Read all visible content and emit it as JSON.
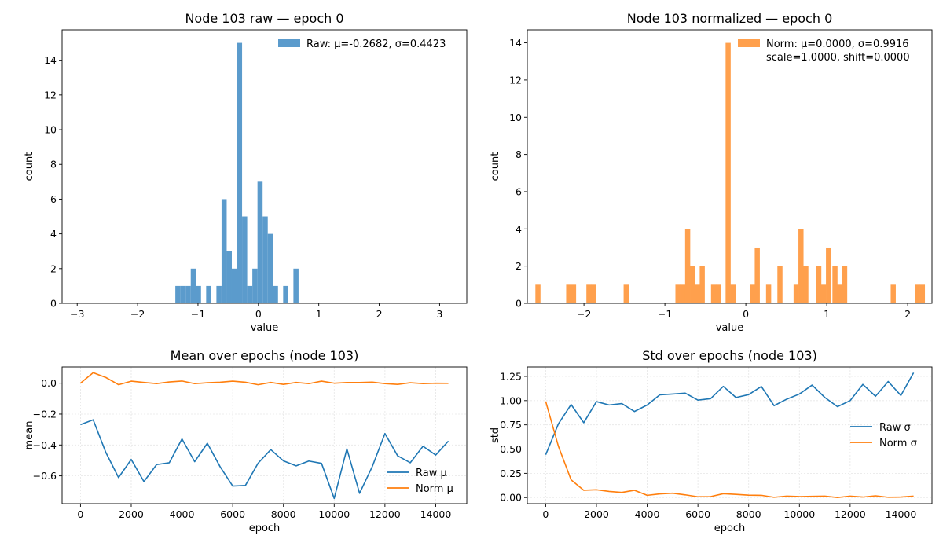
{
  "chart_data": [
    {
      "type": "bar",
      "subtype": "histogram",
      "title": "Node 103 raw — epoch 0",
      "xlabel": "value",
      "ylabel": "count",
      "xlim": [
        -3.25,
        3.45
      ],
      "ylim": [
        0,
        15.75
      ],
      "xticks": [
        -3,
        -2,
        -1,
        0,
        1,
        2,
        3
      ],
      "yticks": [
        0,
        2,
        4,
        6,
        8,
        10,
        12,
        14
      ],
      "bin_width": 0.085,
      "color": "#5b9bcc",
      "legend": {
        "label": "Raw: μ=-0.2682, σ=0.4423",
        "loc": "upper right"
      },
      "bins": [
        {
          "x": -1.375,
          "count": 1
        },
        {
          "x": -1.29,
          "count": 1
        },
        {
          "x": -1.205,
          "count": 1
        },
        {
          "x": -1.12,
          "count": 2
        },
        {
          "x": -1.035,
          "count": 1
        },
        {
          "x": -0.865,
          "count": 1
        },
        {
          "x": -0.695,
          "count": 1
        },
        {
          "x": -0.61,
          "count": 6
        },
        {
          "x": -0.525,
          "count": 3
        },
        {
          "x": -0.44,
          "count": 2
        },
        {
          "x": -0.355,
          "count": 15
        },
        {
          "x": -0.27,
          "count": 5
        },
        {
          "x": -0.185,
          "count": 1
        },
        {
          "x": -0.1,
          "count": 2
        },
        {
          "x": -0.015,
          "count": 7
        },
        {
          "x": 0.07,
          "count": 5
        },
        {
          "x": 0.155,
          "count": 4
        },
        {
          "x": 0.24,
          "count": 1
        },
        {
          "x": 0.41,
          "count": 1
        },
        {
          "x": 0.58,
          "count": 2
        }
      ]
    },
    {
      "type": "bar",
      "subtype": "histogram",
      "title": "Node 103 normalized — epoch 0",
      "xlabel": "value",
      "ylabel": "count",
      "xlim": [
        -2.7,
        2.3
      ],
      "ylim": [
        0,
        14.7
      ],
      "xticks": [
        -2,
        -1,
        0,
        1,
        2
      ],
      "yticks": [
        0,
        2,
        4,
        6,
        8,
        10,
        12,
        14
      ],
      "bin_width": 0.063,
      "color": "#ffa04d",
      "legend": {
        "label": "Norm: μ=0.0000, σ=0.9916",
        "label2": "scale=1.0000, shift=0.0000",
        "loc": "upper right"
      },
      "bins": [
        {
          "x": -2.6,
          "count": 1
        },
        {
          "x": -2.22,
          "count": 1
        },
        {
          "x": -2.16,
          "count": 1
        },
        {
          "x": -1.97,
          "count": 1
        },
        {
          "x": -1.91,
          "count": 1
        },
        {
          "x": -1.51,
          "count": 1
        },
        {
          "x": -0.87,
          "count": 1
        },
        {
          "x": -0.81,
          "count": 1
        },
        {
          "x": -0.75,
          "count": 4
        },
        {
          "x": -0.69,
          "count": 2
        },
        {
          "x": -0.63,
          "count": 1
        },
        {
          "x": -0.57,
          "count": 2
        },
        {
          "x": -0.43,
          "count": 1
        },
        {
          "x": -0.37,
          "count": 1
        },
        {
          "x": -0.25,
          "count": 14
        },
        {
          "x": -0.19,
          "count": 1
        },
        {
          "x": 0.05,
          "count": 1
        },
        {
          "x": 0.11,
          "count": 3
        },
        {
          "x": 0.25,
          "count": 1
        },
        {
          "x": 0.39,
          "count": 2
        },
        {
          "x": 0.59,
          "count": 1
        },
        {
          "x": 0.65,
          "count": 4
        },
        {
          "x": 0.71,
          "count": 2
        },
        {
          "x": 0.87,
          "count": 2
        },
        {
          "x": 0.93,
          "count": 1
        },
        {
          "x": 0.99,
          "count": 3
        },
        {
          "x": 1.07,
          "count": 2
        },
        {
          "x": 1.13,
          "count": 1
        },
        {
          "x": 1.19,
          "count": 2
        },
        {
          "x": 1.79,
          "count": 1
        },
        {
          "x": 2.09,
          "count": 1
        },
        {
          "x": 2.15,
          "count": 1
        }
      ]
    },
    {
      "type": "line",
      "title": "Mean over epochs (node 103)",
      "xlabel": "epoch",
      "ylabel": "mean",
      "xlim": [
        -725,
        15225
      ],
      "ylim": [
        -0.78,
        0.105
      ],
      "xticks": [
        0,
        2000,
        4000,
        6000,
        8000,
        10000,
        12000,
        14000
      ],
      "yticks": [
        -0.6,
        -0.4,
        -0.2,
        0.0
      ],
      "ytick_labels": [
        "−0.6",
        "−0.4",
        "−0.2",
        "0.0"
      ],
      "grid": true,
      "legend_loc": "lower right",
      "x": [
        0,
        500,
        1000,
        1500,
        2000,
        2500,
        3000,
        3500,
        4000,
        4500,
        5000,
        5500,
        6000,
        6500,
        7000,
        7500,
        8000,
        8500,
        9000,
        9500,
        10000,
        10500,
        11000,
        11500,
        12000,
        12500,
        13000,
        13500,
        14000,
        14500
      ],
      "series": [
        {
          "name": "Raw μ",
          "color": "#1f77b4",
          "values": [
            -0.268,
            -0.237,
            -0.449,
            -0.611,
            -0.494,
            -0.637,
            -0.527,
            -0.515,
            -0.361,
            -0.508,
            -0.389,
            -0.54,
            -0.666,
            -0.662,
            -0.518,
            -0.43,
            -0.503,
            -0.535,
            -0.504,
            -0.519,
            -0.746,
            -0.425,
            -0.713,
            -0.54,
            -0.326,
            -0.47,
            -0.515,
            -0.408,
            -0.465,
            -0.375
          ]
        },
        {
          "name": "Norm μ",
          "color": "#ff7f0e",
          "values": [
            0.0,
            0.068,
            0.037,
            -0.01,
            0.013,
            0.005,
            -0.003,
            0.008,
            0.014,
            -0.003,
            0.003,
            0.006,
            0.013,
            0.006,
            -0.01,
            0.005,
            -0.008,
            0.005,
            -0.003,
            0.013,
            0.0,
            0.004,
            0.004,
            0.007,
            -0.003,
            -0.008,
            0.003,
            -0.003,
            0.0,
            -0.001
          ]
        }
      ]
    },
    {
      "type": "line",
      "title": "Std over epochs (node 103)",
      "xlabel": "epoch",
      "ylabel": "std",
      "xlim": [
        -725,
        15225
      ],
      "ylim": [
        -0.063,
        1.347
      ],
      "xticks": [
        0,
        2000,
        4000,
        6000,
        8000,
        10000,
        12000,
        14000
      ],
      "yticks": [
        0.0,
        0.25,
        0.5,
        0.75,
        1.0,
        1.25
      ],
      "ytick_labels": [
        "0.00",
        "0.25",
        "0.50",
        "0.75",
        "1.00",
        "1.25"
      ],
      "grid": true,
      "legend_loc": "center right",
      "x": [
        0,
        500,
        1000,
        1500,
        2000,
        2500,
        3000,
        3500,
        4000,
        4500,
        5000,
        5500,
        6000,
        6500,
        7000,
        7500,
        8000,
        8500,
        9000,
        9500,
        10000,
        10500,
        11000,
        11500,
        12000,
        12500,
        13000,
        13500,
        14000,
        14500
      ],
      "series": [
        {
          "name": "Raw σ",
          "color": "#1f77b4",
          "values": [
            0.442,
            0.76,
            0.96,
            0.772,
            0.99,
            0.955,
            0.97,
            0.888,
            0.955,
            1.06,
            1.068,
            1.077,
            1.005,
            1.02,
            1.147,
            1.032,
            1.062,
            1.146,
            0.948,
            1.015,
            1.068,
            1.16,
            1.033,
            0.938,
            1.0,
            1.167,
            1.045,
            1.197,
            1.053,
            1.287
          ]
        },
        {
          "name": "Norm σ",
          "color": "#ff7f0e",
          "values": [
            0.992,
            0.53,
            0.183,
            0.075,
            0.08,
            0.063,
            0.053,
            0.075,
            0.023,
            0.038,
            0.045,
            0.028,
            0.008,
            0.01,
            0.04,
            0.033,
            0.025,
            0.023,
            0.003,
            0.015,
            0.01,
            0.013,
            0.015,
            0.0,
            0.015,
            0.005,
            0.018,
            0.003,
            0.005,
            0.015
          ]
        }
      ]
    }
  ]
}
